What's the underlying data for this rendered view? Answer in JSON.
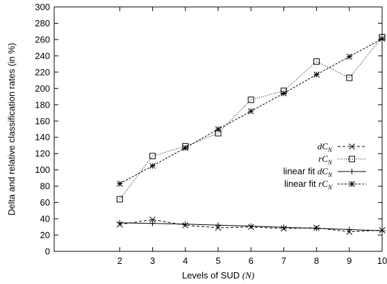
{
  "chart_data": {
    "type": "line",
    "xlabel": "Levels of SUD",
    "xlabel_var": "(N)",
    "ylabel": "Delta and relative classification rates (in %)",
    "x_ticks": [
      2,
      3,
      4,
      5,
      6,
      7,
      8,
      9,
      10
    ],
    "y_ticks": [
      0,
      20,
      40,
      60,
      80,
      100,
      120,
      140,
      160,
      180,
      200,
      220,
      240,
      260,
      280,
      300
    ],
    "xlim": [
      0,
      10
    ],
    "ylim": [
      0,
      300
    ],
    "grid": false,
    "legend_position": "right",
    "x": [
      2,
      3,
      4,
      5,
      6,
      7,
      8,
      9,
      10
    ],
    "series": [
      {
        "name_prefix": "",
        "name_var": "dC",
        "name_sub": "N",
        "values": [
          33,
          39,
          32,
          29,
          30,
          28,
          29,
          24,
          26
        ],
        "marker": "x",
        "line": "dashed",
        "color": "#000000"
      },
      {
        "name_prefix": "",
        "name_var": "rC",
        "name_sub": "N",
        "values": [
          64,
          117,
          129,
          145,
          186,
          197,
          233,
          213,
          263
        ],
        "marker": "square",
        "line": "dotted",
        "color": "#000000"
      },
      {
        "name_prefix": "linear fit ",
        "name_var": "dC",
        "name_sub": "N",
        "values": [
          35,
          34.3,
          33.4,
          32.2,
          31,
          29.5,
          28.2,
          26.8,
          25.3
        ],
        "marker": "plus",
        "line": "solid",
        "color": "#000000"
      },
      {
        "name_prefix": "linear fit ",
        "name_var": "rC",
        "name_sub": "N",
        "values": [
          83,
          105,
          127,
          150,
          172,
          194,
          217,
          239,
          261
        ],
        "marker": "star",
        "line": "dashed-short",
        "color": "#000000"
      }
    ]
  }
}
